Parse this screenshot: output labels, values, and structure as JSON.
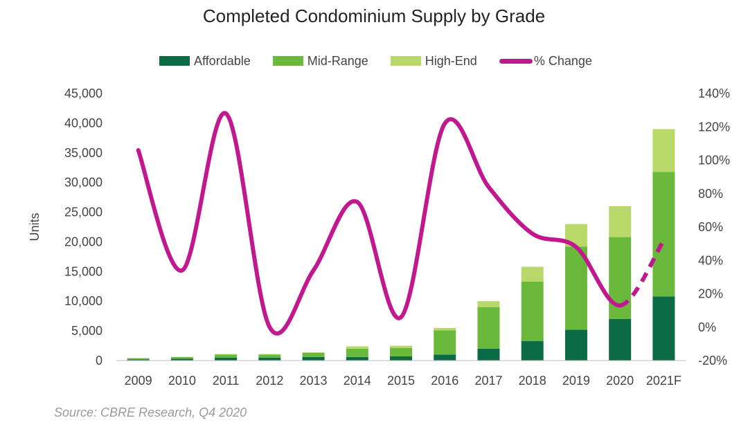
{
  "chart_data": {
    "type": "bar",
    "stacked": true,
    "title": "Completed Condominium Supply by Grade",
    "ylabel": "Units",
    "ylim": [
      0,
      45000
    ],
    "yticks": [
      "0",
      "5,000",
      "10,000",
      "15,000",
      "20,000",
      "25,000",
      "30,000",
      "35,000",
      "40,000",
      "45,000"
    ],
    "y2lim": [
      -20,
      140
    ],
    "y2ticks": [
      "-20%",
      "0%",
      "20%",
      "40%",
      "60%",
      "80%",
      "100%",
      "120%",
      "140%"
    ],
    "categories": [
      "2009",
      "2010",
      "2011",
      "2012",
      "2013",
      "2014",
      "2015",
      "2016",
      "2017",
      "2018",
      "2019",
      "2020",
      "2021F"
    ],
    "series": [
      {
        "name": "Affordable",
        "color": "#0b6b45",
        "values": [
          200,
          300,
          500,
          500,
          600,
          600,
          700,
          1000,
          2000,
          3300,
          5200,
          7000,
          10800
        ]
      },
      {
        "name": "Mid-Range",
        "color": "#6ab93c",
        "values": [
          200,
          300,
          500,
          500,
          700,
          1400,
          1400,
          4100,
          7000,
          10000,
          14000,
          13800,
          21000
        ]
      },
      {
        "name": "High-End",
        "color": "#b8d86a",
        "values": [
          0,
          0,
          100,
          100,
          100,
          400,
          400,
          400,
          1000,
          2500,
          3800,
          5200,
          7200
        ]
      }
    ],
    "line": {
      "name": "% Change",
      "color": "#c2188f",
      "values": [
        106,
        34,
        128,
        0,
        34,
        75,
        6,
        122,
        84,
        56,
        48,
        13,
        52
      ],
      "dashed_from": "2020"
    },
    "legend_position": "top",
    "grid": false
  },
  "source_note": "Source: CBRE Research, Q4 2020"
}
